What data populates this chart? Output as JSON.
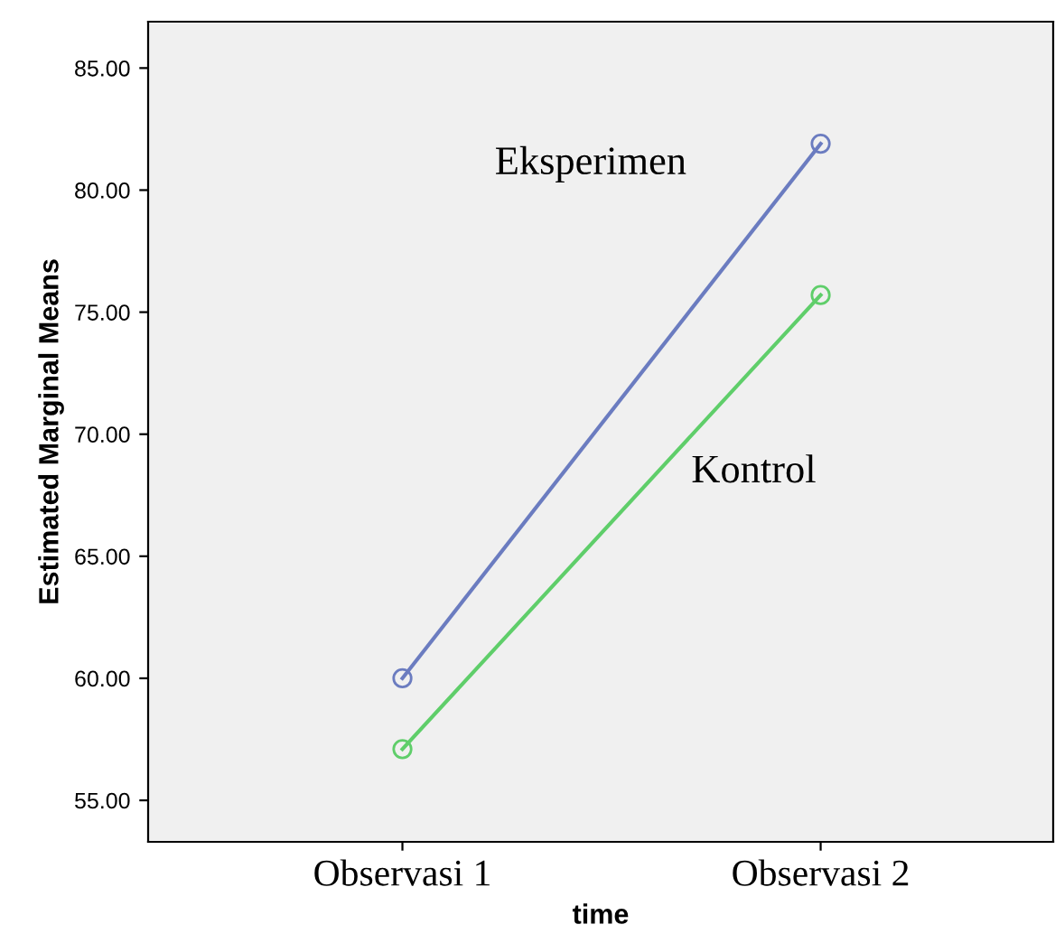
{
  "chart_data": {
    "type": "line",
    "xlabel": "time",
    "ylabel": "Estimated Marginal Means",
    "categories": [
      "Observasi 1",
      "Observasi 2"
    ],
    "series": [
      {
        "name": "Eksperimen",
        "color": "#6b7cc0",
        "values": [
          60.0,
          81.9
        ]
      },
      {
        "name": "Kontrol",
        "color": "#5fce6a",
        "values": [
          57.1,
          75.7
        ]
      }
    ],
    "ylim": [
      53.3,
      86.9
    ],
    "yticks": [
      {
        "value": 55,
        "label": "55.00"
      },
      {
        "value": 60,
        "label": "60.00"
      },
      {
        "value": 65,
        "label": "65.00"
      },
      {
        "value": 70,
        "label": "70.00"
      },
      {
        "value": 75,
        "label": "75.00"
      },
      {
        "value": 80,
        "label": "80.00"
      },
      {
        "value": 85,
        "label": "85.00"
      }
    ],
    "marker": "circle",
    "grid": false,
    "legend": false
  }
}
